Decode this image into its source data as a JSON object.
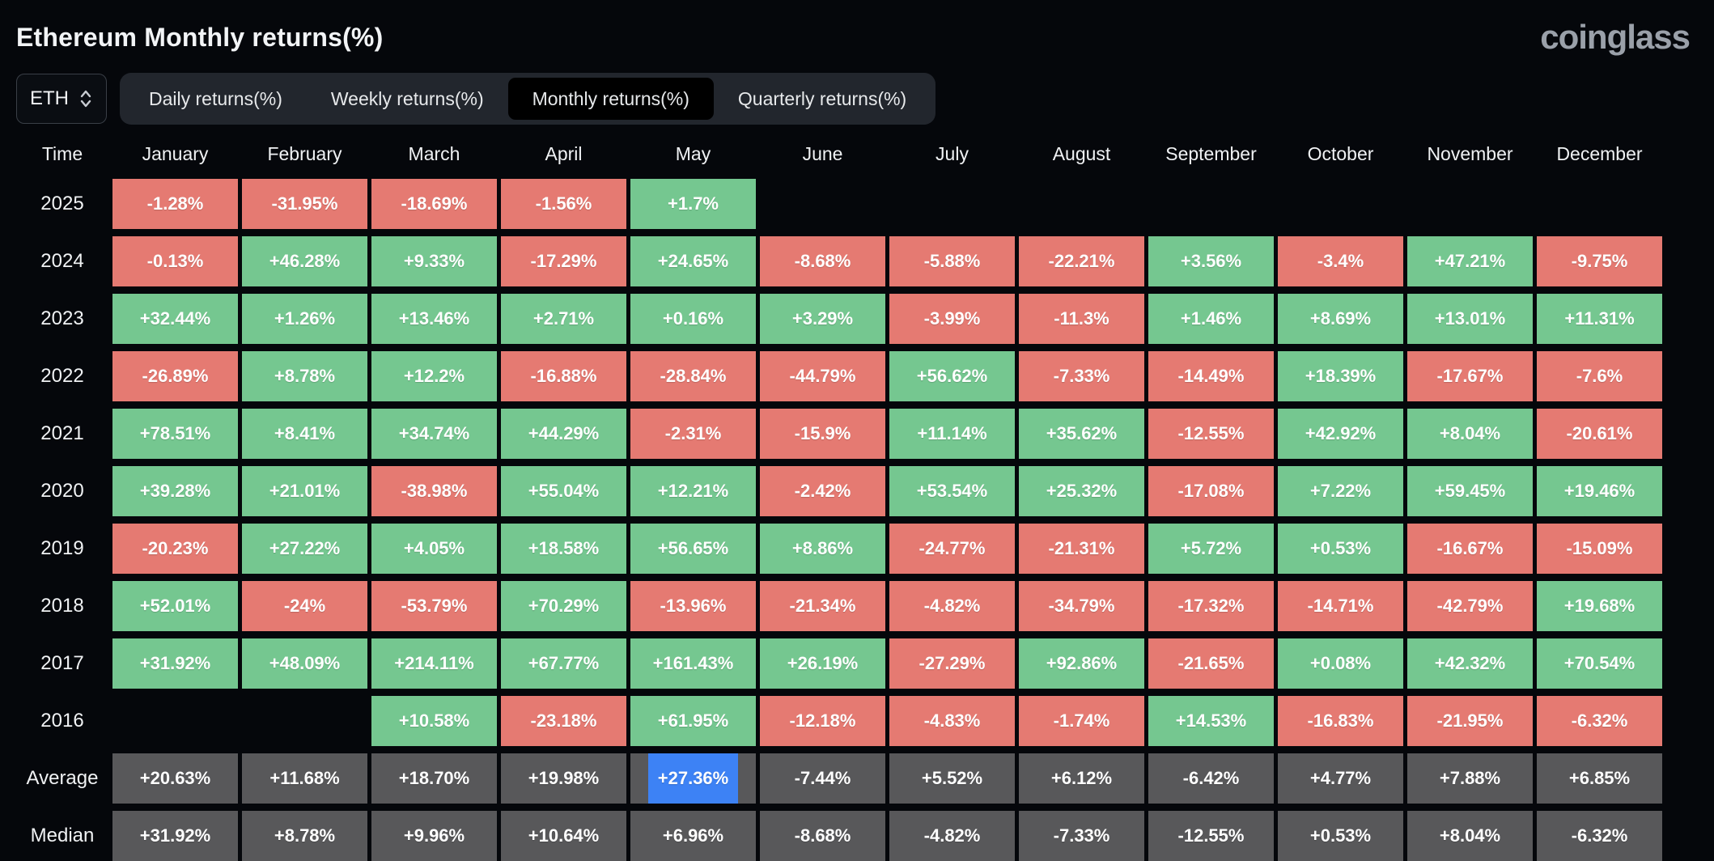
{
  "title": "Ethereum Monthly returns(%)",
  "logo_text": "coinglass",
  "symbol_selector": {
    "value": "ETH"
  },
  "tabs": [
    {
      "id": "daily",
      "label": "Daily returns(%)",
      "active": false
    },
    {
      "id": "weekly",
      "label": "Weekly returns(%)",
      "active": false
    },
    {
      "id": "monthly",
      "label": "Monthly returns(%)",
      "active": true
    },
    {
      "id": "quarterly",
      "label": "Quarterly returns(%)",
      "active": false
    }
  ],
  "colors": {
    "page_bg": "#05070b",
    "tabbar_bg": "#22262d",
    "active_tab_bg": "#000000",
    "green": "#75c790",
    "red": "#e57a72",
    "gray": "#58585a",
    "selection": "#3d82f5",
    "logo_gray": "#9aa0a9"
  },
  "table": {
    "columns": [
      "Time",
      "January",
      "February",
      "March",
      "April",
      "May",
      "June",
      "July",
      "August",
      "September",
      "October",
      "November",
      "December"
    ],
    "rows": [
      {
        "label": "2025",
        "cells": [
          {
            "v": "-1.28%",
            "c": "red"
          },
          {
            "v": "-31.95%",
            "c": "red"
          },
          {
            "v": "-18.69%",
            "c": "red"
          },
          {
            "v": "-1.56%",
            "c": "red"
          },
          {
            "v": "+1.7%",
            "c": "green"
          },
          null,
          null,
          null,
          null,
          null,
          null,
          null
        ]
      },
      {
        "label": "2024",
        "cells": [
          {
            "v": "-0.13%",
            "c": "red"
          },
          {
            "v": "+46.28%",
            "c": "green"
          },
          {
            "v": "+9.33%",
            "c": "green"
          },
          {
            "v": "-17.29%",
            "c": "red"
          },
          {
            "v": "+24.65%",
            "c": "green"
          },
          {
            "v": "-8.68%",
            "c": "red"
          },
          {
            "v": "-5.88%",
            "c": "red"
          },
          {
            "v": "-22.21%",
            "c": "red"
          },
          {
            "v": "+3.56%",
            "c": "green"
          },
          {
            "v": "-3.4%",
            "c": "red"
          },
          {
            "v": "+47.21%",
            "c": "green"
          },
          {
            "v": "-9.75%",
            "c": "red"
          }
        ]
      },
      {
        "label": "2023",
        "cells": [
          {
            "v": "+32.44%",
            "c": "green"
          },
          {
            "v": "+1.26%",
            "c": "green"
          },
          {
            "v": "+13.46%",
            "c": "green"
          },
          {
            "v": "+2.71%",
            "c": "green"
          },
          {
            "v": "+0.16%",
            "c": "green"
          },
          {
            "v": "+3.29%",
            "c": "green"
          },
          {
            "v": "-3.99%",
            "c": "red"
          },
          {
            "v": "-11.3%",
            "c": "red"
          },
          {
            "v": "+1.46%",
            "c": "green"
          },
          {
            "v": "+8.69%",
            "c": "green"
          },
          {
            "v": "+13.01%",
            "c": "green"
          },
          {
            "v": "+11.31%",
            "c": "green"
          }
        ]
      },
      {
        "label": "2022",
        "cells": [
          {
            "v": "-26.89%",
            "c": "red"
          },
          {
            "v": "+8.78%",
            "c": "green"
          },
          {
            "v": "+12.2%",
            "c": "green"
          },
          {
            "v": "-16.88%",
            "c": "red"
          },
          {
            "v": "-28.84%",
            "c": "red"
          },
          {
            "v": "-44.79%",
            "c": "red"
          },
          {
            "v": "+56.62%",
            "c": "green"
          },
          {
            "v": "-7.33%",
            "c": "red"
          },
          {
            "v": "-14.49%",
            "c": "red"
          },
          {
            "v": "+18.39%",
            "c": "green"
          },
          {
            "v": "-17.67%",
            "c": "red"
          },
          {
            "v": "-7.6%",
            "c": "red"
          }
        ]
      },
      {
        "label": "2021",
        "cells": [
          {
            "v": "+78.51%",
            "c": "green"
          },
          {
            "v": "+8.41%",
            "c": "green"
          },
          {
            "v": "+34.74%",
            "c": "green"
          },
          {
            "v": "+44.29%",
            "c": "green"
          },
          {
            "v": "-2.31%",
            "c": "red"
          },
          {
            "v": "-15.9%",
            "c": "red"
          },
          {
            "v": "+11.14%",
            "c": "green"
          },
          {
            "v": "+35.62%",
            "c": "green"
          },
          {
            "v": "-12.55%",
            "c": "red"
          },
          {
            "v": "+42.92%",
            "c": "green"
          },
          {
            "v": "+8.04%",
            "c": "green"
          },
          {
            "v": "-20.61%",
            "c": "red"
          }
        ]
      },
      {
        "label": "2020",
        "cells": [
          {
            "v": "+39.28%",
            "c": "green"
          },
          {
            "v": "+21.01%",
            "c": "green"
          },
          {
            "v": "-38.98%",
            "c": "red"
          },
          {
            "v": "+55.04%",
            "c": "green"
          },
          {
            "v": "+12.21%",
            "c": "green"
          },
          {
            "v": "-2.42%",
            "c": "red"
          },
          {
            "v": "+53.54%",
            "c": "green"
          },
          {
            "v": "+25.32%",
            "c": "green"
          },
          {
            "v": "-17.08%",
            "c": "red"
          },
          {
            "v": "+7.22%",
            "c": "green"
          },
          {
            "v": "+59.45%",
            "c": "green"
          },
          {
            "v": "+19.46%",
            "c": "green"
          }
        ]
      },
      {
        "label": "2019",
        "cells": [
          {
            "v": "-20.23%",
            "c": "red"
          },
          {
            "v": "+27.22%",
            "c": "green"
          },
          {
            "v": "+4.05%",
            "c": "green"
          },
          {
            "v": "+18.58%",
            "c": "green"
          },
          {
            "v": "+56.65%",
            "c": "green"
          },
          {
            "v": "+8.86%",
            "c": "green"
          },
          {
            "v": "-24.77%",
            "c": "red"
          },
          {
            "v": "-21.31%",
            "c": "red"
          },
          {
            "v": "+5.72%",
            "c": "green"
          },
          {
            "v": "+0.53%",
            "c": "green"
          },
          {
            "v": "-16.67%",
            "c": "red"
          },
          {
            "v": "-15.09%",
            "c": "red"
          }
        ]
      },
      {
        "label": "2018",
        "cells": [
          {
            "v": "+52.01%",
            "c": "green"
          },
          {
            "v": "-24%",
            "c": "red"
          },
          {
            "v": "-53.79%",
            "c": "red"
          },
          {
            "v": "+70.29%",
            "c": "green"
          },
          {
            "v": "-13.96%",
            "c": "red"
          },
          {
            "v": "-21.34%",
            "c": "red"
          },
          {
            "v": "-4.82%",
            "c": "red"
          },
          {
            "v": "-34.79%",
            "c": "red"
          },
          {
            "v": "-17.32%",
            "c": "red"
          },
          {
            "v": "-14.71%",
            "c": "red"
          },
          {
            "v": "-42.79%",
            "c": "red"
          },
          {
            "v": "+19.68%",
            "c": "green"
          }
        ]
      },
      {
        "label": "2017",
        "cells": [
          {
            "v": "+31.92%",
            "c": "green"
          },
          {
            "v": "+48.09%",
            "c": "green"
          },
          {
            "v": "+214.11%",
            "c": "green"
          },
          {
            "v": "+67.77%",
            "c": "green"
          },
          {
            "v": "+161.43%",
            "c": "green"
          },
          {
            "v": "+26.19%",
            "c": "green"
          },
          {
            "v": "-27.29%",
            "c": "red"
          },
          {
            "v": "+92.86%",
            "c": "green"
          },
          {
            "v": "-21.65%",
            "c": "red"
          },
          {
            "v": "+0.08%",
            "c": "green"
          },
          {
            "v": "+42.32%",
            "c": "green"
          },
          {
            "v": "+70.54%",
            "c": "green"
          }
        ]
      },
      {
        "label": "2016",
        "cells": [
          null,
          null,
          {
            "v": "+10.58%",
            "c": "green"
          },
          {
            "v": "-23.18%",
            "c": "red"
          },
          {
            "v": "+61.95%",
            "c": "green"
          },
          {
            "v": "-12.18%",
            "c": "red"
          },
          {
            "v": "-4.83%",
            "c": "red"
          },
          {
            "v": "-1.74%",
            "c": "red"
          },
          {
            "v": "+14.53%",
            "c": "green"
          },
          {
            "v": "-16.83%",
            "c": "red"
          },
          {
            "v": "-21.95%",
            "c": "red"
          },
          {
            "v": "-6.32%",
            "c": "red"
          }
        ]
      },
      {
        "label": "Average",
        "cells": [
          {
            "v": "+20.63%",
            "c": "gray"
          },
          {
            "v": "+11.68%",
            "c": "gray"
          },
          {
            "v": "+18.70%",
            "c": "gray"
          },
          {
            "v": "+19.98%",
            "c": "gray"
          },
          {
            "v": "+27.36%",
            "c": "gray",
            "selected": true
          },
          {
            "v": "-7.44%",
            "c": "gray"
          },
          {
            "v": "+5.52%",
            "c": "gray"
          },
          {
            "v": "+6.12%",
            "c": "gray"
          },
          {
            "v": "-6.42%",
            "c": "gray"
          },
          {
            "v": "+4.77%",
            "c": "gray"
          },
          {
            "v": "+7.88%",
            "c": "gray"
          },
          {
            "v": "+6.85%",
            "c": "gray"
          }
        ]
      },
      {
        "label": "Median",
        "cells": [
          {
            "v": "+31.92%",
            "c": "gray"
          },
          {
            "v": "+8.78%",
            "c": "gray"
          },
          {
            "v": "+9.96%",
            "c": "gray"
          },
          {
            "v": "+10.64%",
            "c": "gray"
          },
          {
            "v": "+6.96%",
            "c": "gray"
          },
          {
            "v": "-8.68%",
            "c": "gray"
          },
          {
            "v": "-4.82%",
            "c": "gray"
          },
          {
            "v": "-7.33%",
            "c": "gray"
          },
          {
            "v": "-12.55%",
            "c": "gray"
          },
          {
            "v": "+0.53%",
            "c": "gray"
          },
          {
            "v": "+8.04%",
            "c": "gray"
          },
          {
            "v": "-6.32%",
            "c": "gray"
          }
        ]
      }
    ]
  }
}
